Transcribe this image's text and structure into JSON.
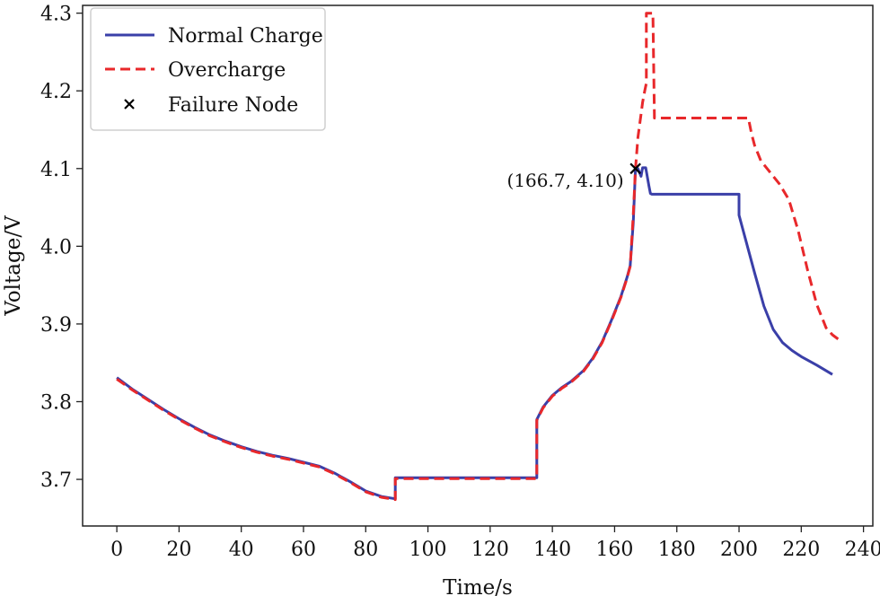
{
  "chart_data": {
    "type": "line",
    "title": "",
    "xlabel": "Time/s",
    "ylabel": "Voltage/V",
    "xlim": [
      -11,
      243
    ],
    "ylim": [
      3.64,
      4.31
    ],
    "xticks": [
      0,
      20,
      40,
      60,
      80,
      100,
      120,
      140,
      160,
      180,
      200,
      220,
      240
    ],
    "yticks": [
      3.7,
      3.8,
      3.9,
      4.0,
      4.1,
      4.2,
      4.3
    ],
    "ytick_labels": [
      "3.7",
      "3.8",
      "3.9",
      "4.0",
      "4.1",
      "4.2",
      "4.3"
    ],
    "grid": false,
    "legend_position": "top-left",
    "legend": {
      "normal": "Normal Charge",
      "over": "Overcharge",
      "node": "Failure Node"
    },
    "colors": {
      "normal": "#3a3fa8",
      "over": "#e8282b",
      "node": "#000000"
    },
    "series": [
      {
        "name": "Normal Charge",
        "style": "solid",
        "x": [
          0,
          5,
          10,
          15,
          20,
          25,
          30,
          35,
          40,
          45,
          50,
          55,
          60,
          65,
          70,
          75,
          80,
          85,
          89.5,
          89.5,
          95,
          100,
          110,
          120,
          130,
          135,
          135,
          137,
          140,
          143,
          146,
          150,
          153,
          156,
          159,
          162,
          164,
          165,
          166,
          166.7,
          167.5,
          168.5,
          169,
          170,
          171,
          171.5,
          172,
          175,
          180,
          185,
          190,
          195,
          200,
          200,
          202,
          205,
          208,
          211,
          214,
          217,
          220,
          225,
          230
        ],
        "y": [
          3.831,
          3.816,
          3.803,
          3.79,
          3.778,
          3.767,
          3.757,
          3.749,
          3.742,
          3.736,
          3.731,
          3.727,
          3.722,
          3.717,
          3.708,
          3.697,
          3.685,
          3.678,
          3.675,
          3.702,
          3.702,
          3.702,
          3.702,
          3.702,
          3.702,
          3.702,
          3.777,
          3.793,
          3.808,
          3.818,
          3.826,
          3.84,
          3.856,
          3.877,
          3.905,
          3.935,
          3.96,
          3.975,
          4.03,
          4.1,
          4.1,
          4.09,
          4.101,
          4.101,
          4.078,
          4.068,
          4.067,
          4.067,
          4.067,
          4.067,
          4.067,
          4.067,
          4.067,
          4.04,
          4.01,
          3.966,
          3.923,
          3.893,
          3.876,
          3.866,
          3.858,
          3.847,
          3.835
        ]
      },
      {
        "name": "Overcharge",
        "style": "dashed",
        "x": [
          0,
          5,
          10,
          15,
          20,
          25,
          30,
          35,
          40,
          45,
          50,
          55,
          60,
          65,
          70,
          75,
          80,
          85,
          89.5,
          89.5,
          95,
          100,
          110,
          120,
          130,
          135,
          135,
          137,
          140,
          143,
          146,
          150,
          153,
          156,
          159,
          162,
          164,
          165,
          166,
          166.7,
          167.5,
          168.5,
          169,
          169.7,
          170.2,
          170.2,
          171,
          172,
          172.3,
          172.8,
          174,
          180,
          185,
          190,
          195,
          200,
          203,
          204,
          205,
          207,
          210,
          213,
          216,
          219,
          222,
          225,
          228,
          230,
          233
        ],
        "y": [
          3.829,
          3.815,
          3.802,
          3.789,
          3.777,
          3.766,
          3.756,
          3.748,
          3.741,
          3.735,
          3.73,
          3.726,
          3.721,
          3.716,
          3.707,
          3.696,
          3.684,
          3.677,
          3.674,
          3.701,
          3.701,
          3.701,
          3.701,
          3.701,
          3.701,
          3.701,
          3.776,
          3.792,
          3.807,
          3.817,
          3.825,
          3.839,
          3.855,
          3.876,
          3.904,
          3.934,
          3.959,
          3.974,
          4.04,
          4.1,
          4.14,
          4.17,
          4.185,
          4.2,
          4.21,
          4.3,
          4.3,
          4.3,
          4.3,
          4.165,
          4.165,
          4.165,
          4.165,
          4.165,
          4.165,
          4.165,
          4.165,
          4.145,
          4.13,
          4.11,
          4.095,
          4.08,
          4.06,
          4.02,
          3.97,
          3.925,
          3.895,
          3.886,
          3.877
        ]
      }
    ],
    "failure_node": {
      "x": 166.7,
      "y": 4.1
    },
    "annotation": "(166.7, 4.10)"
  }
}
